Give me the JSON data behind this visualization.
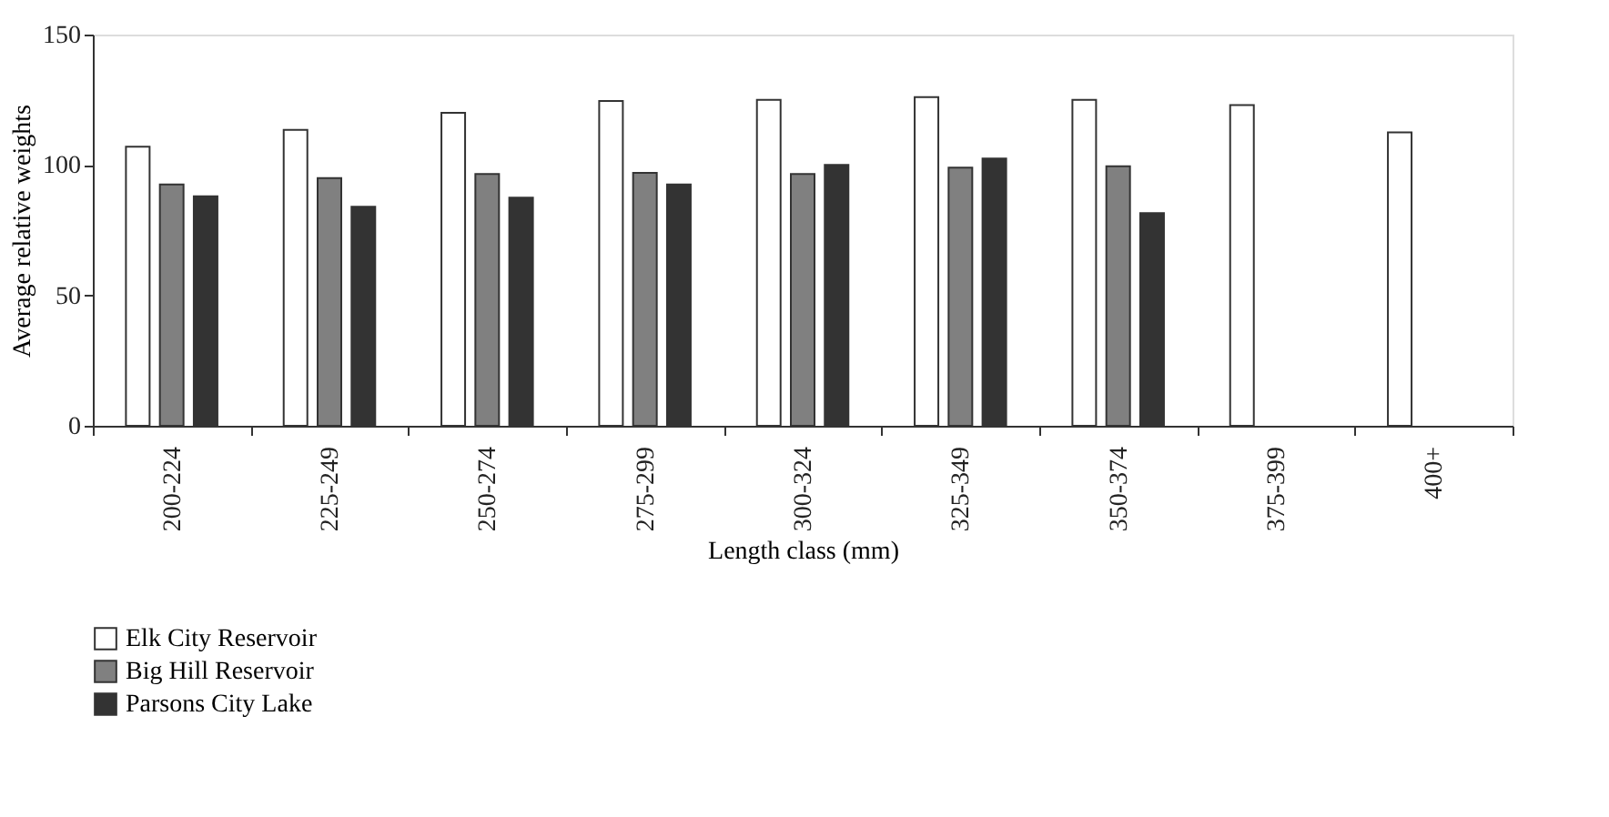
{
  "chart_data": {
    "type": "bar",
    "xlabel": "Length class (mm)",
    "ylabel": "Average relative weights",
    "categories": [
      "200-224",
      "225-249",
      "250-274",
      "275-299",
      "300-324",
      "325-349",
      "350-374",
      "375-399",
      "400+"
    ],
    "series": [
      {
        "name": "Elk City Reservoir",
        "color": "#ffffff",
        "values": [
          107,
          113.5,
          120,
          124.5,
          125,
          126,
          125,
          123,
          112.5
        ]
      },
      {
        "name": "Big Hill Reservoir",
        "color": "#808080",
        "values": [
          92.5,
          95,
          96.5,
          97,
          96.5,
          99,
          99.5,
          null,
          null
        ]
      },
      {
        "name": "Parsons City Lake",
        "color": "#333333",
        "values": [
          88,
          84,
          87.5,
          92.5,
          100,
          102.5,
          81.5,
          null,
          null
        ]
      }
    ],
    "ylim": [
      0,
      150
    ],
    "yticks": [
      0,
      50,
      100,
      150
    ],
    "grid": false,
    "legend": "bottom left"
  }
}
